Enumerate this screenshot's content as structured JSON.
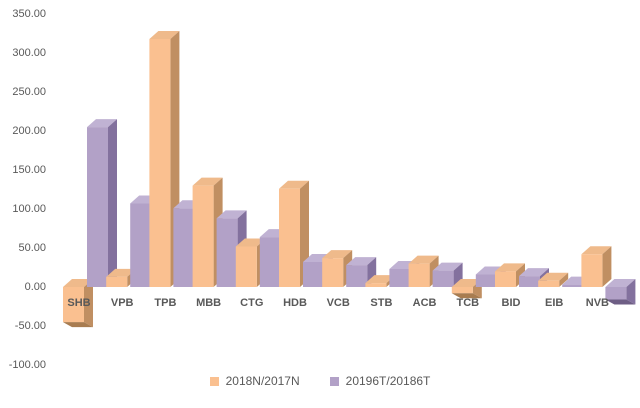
{
  "chart_data": {
    "type": "bar",
    "style": "3d-clustered-column",
    "title": "",
    "xlabel": "",
    "ylabel": "",
    "grid": false,
    "legend_position": "bottom",
    "background": "#FFFFFF",
    "text_color": "#595959",
    "categories": [
      "SHB",
      "VPB",
      "TPB",
      "MBB",
      "CTG",
      "HDB",
      "VCB",
      "STB",
      "ACB",
      "TCB",
      "BID",
      "EIB",
      "NVB"
    ],
    "series": [
      {
        "name": "2018N/2017N",
        "values": [
          -45,
          13,
          318,
          130,
          52,
          126,
          37,
          5,
          30,
          -8,
          20,
          8,
          42
        ],
        "colors": {
          "front": "#FAC090",
          "top": "#EFBA8B",
          "side": "#C08F62",
          "bottom": "#A87C50"
        }
      },
      {
        "name": "20196T/20186T",
        "values": [
          205,
          107,
          101,
          88,
          64,
          32,
          28,
          23,
          21,
          16,
          14,
          3,
          -16
        ],
        "colors": {
          "front": "#B2A1C7",
          "top": "#C0B2D3",
          "side": "#83719E",
          "bottom": "#6E5E85"
        }
      }
    ],
    "y_axis": {
      "min": -100,
      "max": 350,
      "step": 50,
      "tick_labels": [
        "350.00",
        "300.00",
        "250.00",
        "200.00",
        "150.00",
        "100.00",
        "50.00",
        "0.00",
        "-50.00",
        "-100.00"
      ],
      "tick_values": [
        350,
        300,
        250,
        200,
        150,
        100,
        50,
        0,
        -50,
        -100
      ]
    }
  }
}
